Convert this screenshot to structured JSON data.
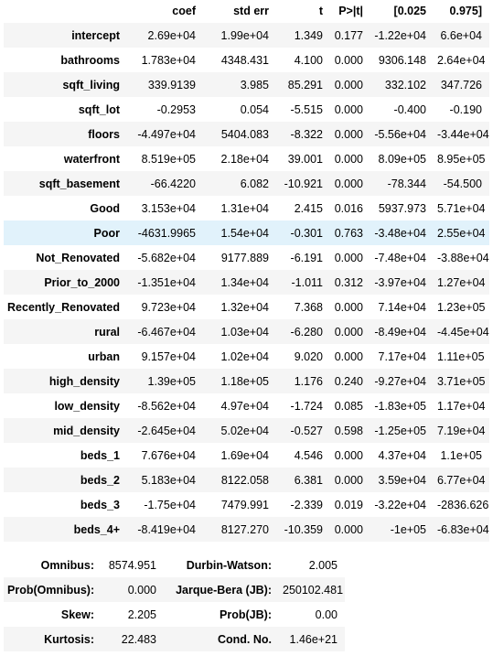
{
  "coef_table": {
    "headers": [
      "",
      "coef",
      "std err",
      "t",
      "P>|t|",
      "[0.025",
      "0.975]"
    ],
    "rows": [
      {
        "name": "intercept",
        "coef": "2.69e+04",
        "std_err": "1.99e+04",
        "t": "1.349",
        "p": "0.177",
        "lo": "-1.22e+04",
        "hi": "6.6e+04"
      },
      {
        "name": "bathrooms",
        "coef": "1.783e+04",
        "std_err": "4348.431",
        "t": "4.100",
        "p": "0.000",
        "lo": "9306.148",
        "hi": "2.64e+04"
      },
      {
        "name": "sqft_living",
        "coef": "339.9139",
        "std_err": "3.985",
        "t": "85.291",
        "p": "0.000",
        "lo": "332.102",
        "hi": "347.726"
      },
      {
        "name": "sqft_lot",
        "coef": "-0.2953",
        "std_err": "0.054",
        "t": "-5.515",
        "p": "0.000",
        "lo": "-0.400",
        "hi": "-0.190"
      },
      {
        "name": "floors",
        "coef": "-4.497e+04",
        "std_err": "5404.083",
        "t": "-8.322",
        "p": "0.000",
        "lo": "-5.56e+04",
        "hi": "-3.44e+04"
      },
      {
        "name": "waterfront",
        "coef": "8.519e+05",
        "std_err": "2.18e+04",
        "t": "39.001",
        "p": "0.000",
        "lo": "8.09e+05",
        "hi": "8.95e+05"
      },
      {
        "name": "sqft_basement",
        "coef": "-66.4220",
        "std_err": "6.082",
        "t": "-10.921",
        "p": "0.000",
        "lo": "-78.344",
        "hi": "-54.500"
      },
      {
        "name": "Good",
        "coef": "3.153e+04",
        "std_err": "1.31e+04",
        "t": "2.415",
        "p": "0.016",
        "lo": "5937.973",
        "hi": "5.71e+04"
      },
      {
        "name": "Poor",
        "coef": "-4631.9965",
        "std_err": "1.54e+04",
        "t": "-0.301",
        "p": "0.763",
        "lo": "-3.48e+04",
        "hi": "2.55e+04"
      },
      {
        "name": "Not_Renovated",
        "coef": "-5.682e+04",
        "std_err": "9177.889",
        "t": "-6.191",
        "p": "0.000",
        "lo": "-7.48e+04",
        "hi": "-3.88e+04"
      },
      {
        "name": "Prior_to_2000",
        "coef": "-1.351e+04",
        "std_err": "1.34e+04",
        "t": "-1.011",
        "p": "0.312",
        "lo": "-3.97e+04",
        "hi": "1.27e+04"
      },
      {
        "name": "Recently_Renovated",
        "coef": "9.723e+04",
        "std_err": "1.32e+04",
        "t": "7.368",
        "p": "0.000",
        "lo": "7.14e+04",
        "hi": "1.23e+05"
      },
      {
        "name": "rural",
        "coef": "-6.467e+04",
        "std_err": "1.03e+04",
        "t": "-6.280",
        "p": "0.000",
        "lo": "-8.49e+04",
        "hi": "-4.45e+04"
      },
      {
        "name": "urban",
        "coef": "9.157e+04",
        "std_err": "1.02e+04",
        "t": "9.020",
        "p": "0.000",
        "lo": "7.17e+04",
        "hi": "1.11e+05"
      },
      {
        "name": "high_density",
        "coef": "1.39e+05",
        "std_err": "1.18e+05",
        "t": "1.176",
        "p": "0.240",
        "lo": "-9.27e+04",
        "hi": "3.71e+05"
      },
      {
        "name": "low_density",
        "coef": "-8.562e+04",
        "std_err": "4.97e+04",
        "t": "-1.724",
        "p": "0.085",
        "lo": "-1.83e+05",
        "hi": "1.17e+04"
      },
      {
        "name": "mid_density",
        "coef": "-2.645e+04",
        "std_err": "5.02e+04",
        "t": "-0.527",
        "p": "0.598",
        "lo": "-1.25e+05",
        "hi": "7.19e+04"
      },
      {
        "name": "beds_1",
        "coef": "7.676e+04",
        "std_err": "1.69e+04",
        "t": "4.546",
        "p": "0.000",
        "lo": "4.37e+04",
        "hi": "1.1e+05"
      },
      {
        "name": "beds_2",
        "coef": "5.183e+04",
        "std_err": "8122.058",
        "t": "6.381",
        "p": "0.000",
        "lo": "3.59e+04",
        "hi": "6.77e+04"
      },
      {
        "name": "beds_3",
        "coef": "-1.75e+04",
        "std_err": "7479.991",
        "t": "-2.339",
        "p": "0.019",
        "lo": "-3.22e+04",
        "hi": "-2836.626"
      },
      {
        "name": "beds_4+",
        "coef": "-8.419e+04",
        "std_err": "8127.270",
        "t": "-10.359",
        "p": "0.000",
        "lo": "-1e+05",
        "hi": "-6.83e+04"
      }
    ],
    "highlight_color": "#e1f2fb",
    "stripe_color": "#f5f5f5"
  },
  "diagnostics": [
    {
      "label1": "Omnibus:",
      "value1": "8574.951",
      "label2": "Durbin-Watson:",
      "value2": "2.005"
    },
    {
      "label1": "Prob(Omnibus):",
      "value1": "0.000",
      "label2": "Jarque-Bera (JB):",
      "value2": "250102.481"
    },
    {
      "label1": "Skew:",
      "value1": "2.205",
      "label2": "Prob(JB):",
      "value2": "0.00"
    },
    {
      "label1": "Kurtosis:",
      "value1": "22.483",
      "label2": "Cond. No.",
      "value2": "1.46e+21"
    }
  ]
}
